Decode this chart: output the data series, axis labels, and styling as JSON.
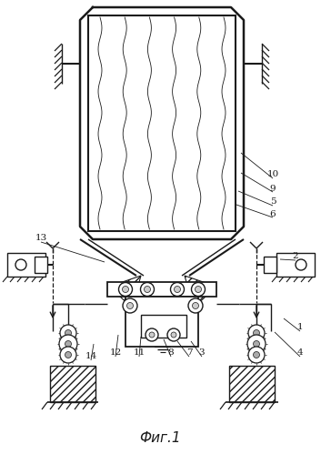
{
  "title": "Фиг.1",
  "bg_color": "#ffffff",
  "lc": "#1a1a1a"
}
